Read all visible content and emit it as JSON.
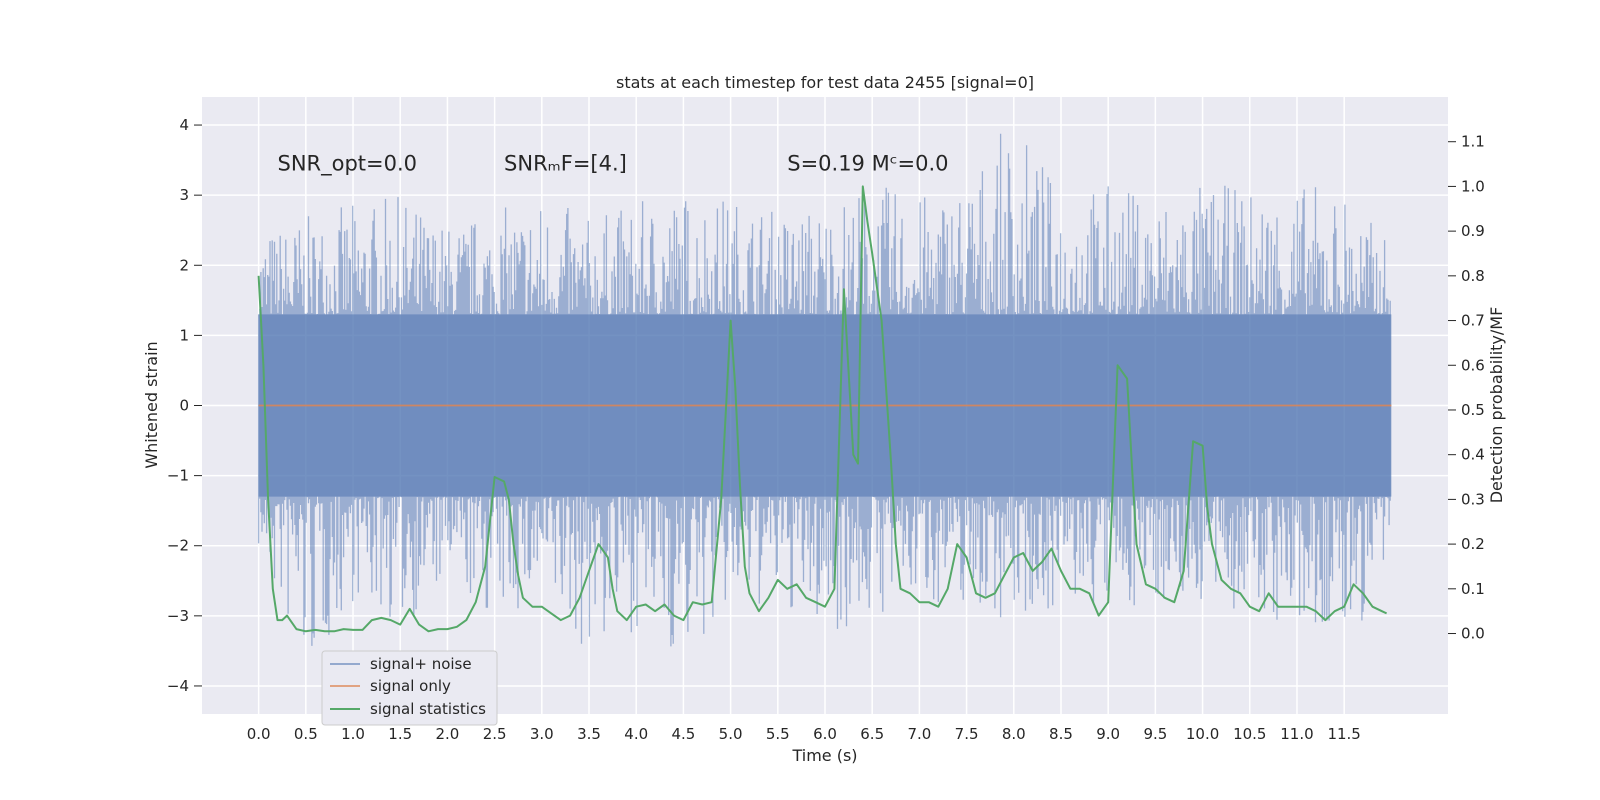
{
  "chart_data": {
    "type": "line",
    "title": "stats at each timestep for test data 2455 [signal=0]",
    "xlabel": "Time (s)",
    "ylabel": "Whitened strain",
    "ylabel_right": "Detection probability/MF",
    "xlim": [
      -0.6,
      12.6
    ],
    "ylim": [
      -4.4,
      4.4
    ],
    "ylim_right": [
      -0.18,
      1.2
    ],
    "x_ticks": [
      0.0,
      0.5,
      1.0,
      1.5,
      2.0,
      2.5,
      3.0,
      3.5,
      4.0,
      4.5,
      5.0,
      5.5,
      6.0,
      6.5,
      7.0,
      7.5,
      8.0,
      8.5,
      9.0,
      9.5,
      10.0,
      10.5,
      11.0,
      11.5
    ],
    "x_tick_labels": [
      "0.0",
      "0.5",
      "1.0",
      "1.5",
      "2.0",
      "2.5",
      "3.0",
      "3.5",
      "4.0",
      "4.5",
      "5.0",
      "5.5",
      "6.0",
      "6.5",
      "7.0",
      "7.5",
      "8.0",
      "8.5",
      "9.0",
      "9.5",
      "10.0",
      "10.5",
      "11.0",
      "11.5"
    ],
    "y_ticks": [
      -4,
      -3,
      -2,
      -1,
      0,
      1,
      2,
      3,
      4
    ],
    "y_tick_labels": [
      "−4",
      "−3",
      "−2",
      "−1",
      "0",
      "1",
      "2",
      "3",
      "4"
    ],
    "y_right_ticks": [
      0.0,
      0.1,
      0.2,
      0.3,
      0.4,
      0.5,
      0.6,
      0.7,
      0.8,
      0.9,
      1.0,
      1.1
    ],
    "y_right_tick_labels": [
      "0.0",
      "0.1",
      "0.2",
      "0.3",
      "0.4",
      "0.5",
      "0.6",
      "0.7",
      "0.8",
      "0.9",
      "1.0",
      "1.1"
    ],
    "grid": true,
    "legend_position": "lower-left",
    "annotations": [
      {
        "text": "SNR_opt=0.0",
        "x": 0.2,
        "y": 3.35
      },
      {
        "text": "SNRₘF=[4.]",
        "x": 2.6,
        "y": 3.35
      },
      {
        "text": "S=0.19   Mᶜ=0.0",
        "x": 5.6,
        "y": 3.35
      }
    ],
    "series": [
      {
        "name": "signal+ noise",
        "color": "#4c72b0",
        "axis": "left",
        "envelope": {
          "x": [
            0.0,
            0.5,
            1.0,
            1.5,
            2.0,
            2.5,
            3.0,
            3.5,
            4.0,
            4.5,
            5.0,
            5.5,
            6.0,
            6.5,
            7.0,
            7.5,
            8.0,
            8.5,
            9.0,
            9.5,
            10.0,
            10.5,
            11.0,
            11.5,
            12.0
          ],
          "upper": [
            2.5,
            2.7,
            2.9,
            3.0,
            2.6,
            2.8,
            3.0,
            2.7,
            2.9,
            3.1,
            3.0,
            2.8,
            2.9,
            3.2,
            3.0,
            3.3,
            4.1,
            3.1,
            3.2,
            3.0,
            3.2,
            3.1,
            3.2,
            3.1,
            2.3
          ],
          "lower": [
            -2.1,
            -4.0,
            -2.8,
            -3.2,
            -2.6,
            -3.1,
            -2.9,
            -3.6,
            -3.2,
            -3.7,
            -3.0,
            -2.9,
            -3.3,
            -3.1,
            -2.8,
            -2.9,
            -3.1,
            -2.9,
            -3.0,
            -2.8,
            -2.9,
            -3.0,
            -3.4,
            -3.5,
            -2.6
          ]
        }
      },
      {
        "name": "signal only",
        "color": "#dd8452",
        "axis": "left",
        "x": [
          0.0,
          12.0
        ],
        "y": [
          0.0,
          0.0
        ]
      },
      {
        "name": "signal statistics",
        "color": "#55a868",
        "axis": "right",
        "x": [
          0.0,
          0.05,
          0.1,
          0.15,
          0.2,
          0.25,
          0.3,
          0.4,
          0.5,
          0.6,
          0.7,
          0.8,
          0.9,
          1.0,
          1.1,
          1.2,
          1.3,
          1.4,
          1.5,
          1.6,
          1.7,
          1.8,
          1.9,
          2.0,
          2.1,
          2.2,
          2.3,
          2.4,
          2.5,
          2.6,
          2.65,
          2.7,
          2.75,
          2.8,
          2.9,
          3.0,
          3.1,
          3.2,
          3.3,
          3.4,
          3.5,
          3.6,
          3.7,
          3.75,
          3.8,
          3.9,
          4.0,
          4.1,
          4.2,
          4.3,
          4.4,
          4.5,
          4.6,
          4.7,
          4.8,
          4.9,
          5.0,
          5.05,
          5.1,
          5.15,
          5.2,
          5.3,
          5.4,
          5.5,
          5.6,
          5.7,
          5.8,
          5.9,
          6.0,
          6.1,
          6.2,
          6.3,
          6.35,
          6.4,
          6.45,
          6.5,
          6.6,
          6.7,
          6.75,
          6.8,
          6.9,
          7.0,
          7.1,
          7.2,
          7.3,
          7.4,
          7.5,
          7.6,
          7.7,
          7.8,
          7.9,
          8.0,
          8.1,
          8.2,
          8.3,
          8.4,
          8.5,
          8.6,
          8.7,
          8.8,
          8.9,
          9.0,
          9.1,
          9.2,
          9.25,
          9.3,
          9.4,
          9.5,
          9.6,
          9.7,
          9.8,
          9.9,
          10.0,
          10.05,
          10.1,
          10.2,
          10.3,
          10.4,
          10.5,
          10.6,
          10.7,
          10.8,
          10.9,
          11.0,
          11.1,
          11.2,
          11.3,
          11.4,
          11.5,
          11.6,
          11.7,
          11.8,
          11.9,
          11.95
        ],
        "y": [
          0.8,
          0.6,
          0.3,
          0.1,
          0.03,
          0.03,
          0.04,
          0.01,
          0.005,
          0.008,
          0.005,
          0.005,
          0.01,
          0.008,
          0.008,
          0.03,
          0.035,
          0.03,
          0.02,
          0.055,
          0.02,
          0.005,
          0.01,
          0.01,
          0.015,
          0.03,
          0.07,
          0.15,
          0.35,
          0.34,
          0.3,
          0.2,
          0.13,
          0.08,
          0.06,
          0.06,
          0.045,
          0.03,
          0.04,
          0.08,
          0.14,
          0.2,
          0.17,
          0.1,
          0.05,
          0.03,
          0.06,
          0.065,
          0.05,
          0.065,
          0.04,
          0.03,
          0.07,
          0.065,
          0.07,
          0.3,
          0.7,
          0.55,
          0.33,
          0.15,
          0.09,
          0.05,
          0.08,
          0.12,
          0.1,
          0.11,
          0.08,
          0.07,
          0.06,
          0.1,
          0.77,
          0.4,
          0.38,
          1.0,
          0.92,
          0.85,
          0.7,
          0.38,
          0.2,
          0.1,
          0.09,
          0.07,
          0.07,
          0.06,
          0.1,
          0.2,
          0.17,
          0.09,
          0.08,
          0.09,
          0.13,
          0.17,
          0.18,
          0.14,
          0.16,
          0.19,
          0.14,
          0.1,
          0.1,
          0.09,
          0.04,
          0.07,
          0.6,
          0.57,
          0.38,
          0.2,
          0.11,
          0.1,
          0.08,
          0.07,
          0.14,
          0.43,
          0.42,
          0.28,
          0.2,
          0.12,
          0.1,
          0.09,
          0.06,
          0.05,
          0.09,
          0.06,
          0.06,
          0.06,
          0.06,
          0.05,
          0.03,
          0.05,
          0.06,
          0.11,
          0.09,
          0.06,
          0.05,
          0.045
        ]
      }
    ]
  }
}
